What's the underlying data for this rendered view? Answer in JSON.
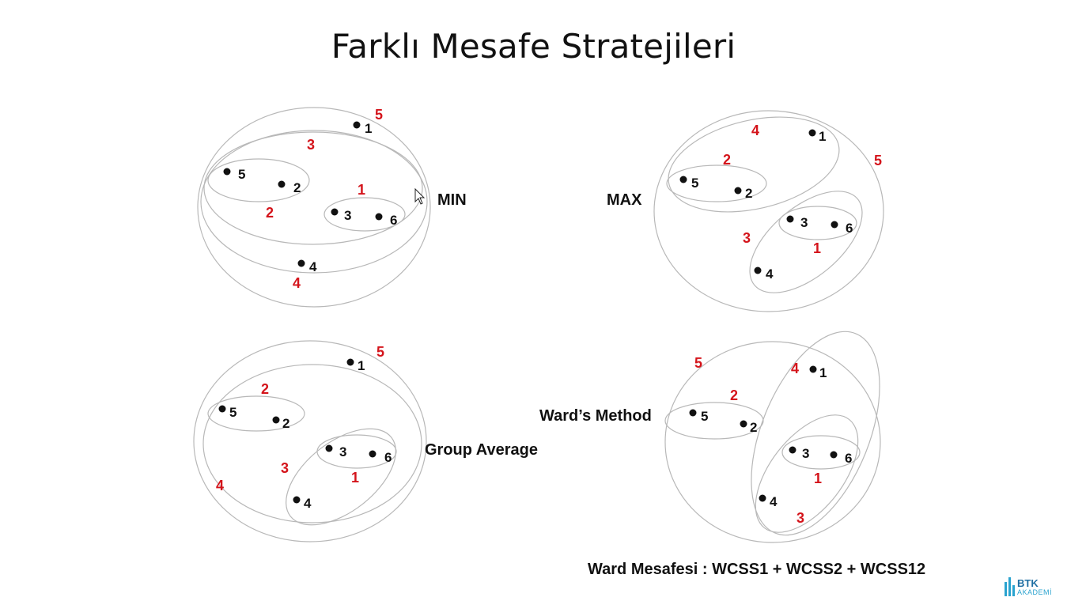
{
  "title": "Farklı Mesafe Stratejileri",
  "colors": {
    "merge_order": "#d4141b",
    "point": "#111111",
    "cluster_outline": "#b8b8b8",
    "logo": "#1f6fa3"
  },
  "panels": [
    {
      "method": "MIN",
      "points": [
        "1",
        "5",
        "2",
        "3",
        "6",
        "4"
      ],
      "merge_order_labels": [
        "5",
        "3",
        "1",
        "2",
        "4"
      ]
    },
    {
      "method": "MAX",
      "points": [
        "1",
        "5",
        "2",
        "3",
        "6",
        "4"
      ],
      "merge_order_labels": [
        "4",
        "2",
        "5",
        "3",
        "1"
      ]
    },
    {
      "method": "Group Average",
      "points": [
        "1",
        "5",
        "2",
        "3",
        "6",
        "4"
      ],
      "merge_order_labels": [
        "5",
        "2",
        "3",
        "1",
        "4"
      ]
    },
    {
      "method": "Ward’s Method",
      "points": [
        "1",
        "5",
        "2",
        "3",
        "6",
        "4"
      ],
      "merge_order_labels": [
        "5",
        "4",
        "2",
        "1",
        "3"
      ]
    }
  ],
  "formula": "Ward Mesafesi : WCSS1 + WCSS2 + WCSS12",
  "logo": {
    "name": "BTK",
    "sub": "AKADEMİ"
  }
}
